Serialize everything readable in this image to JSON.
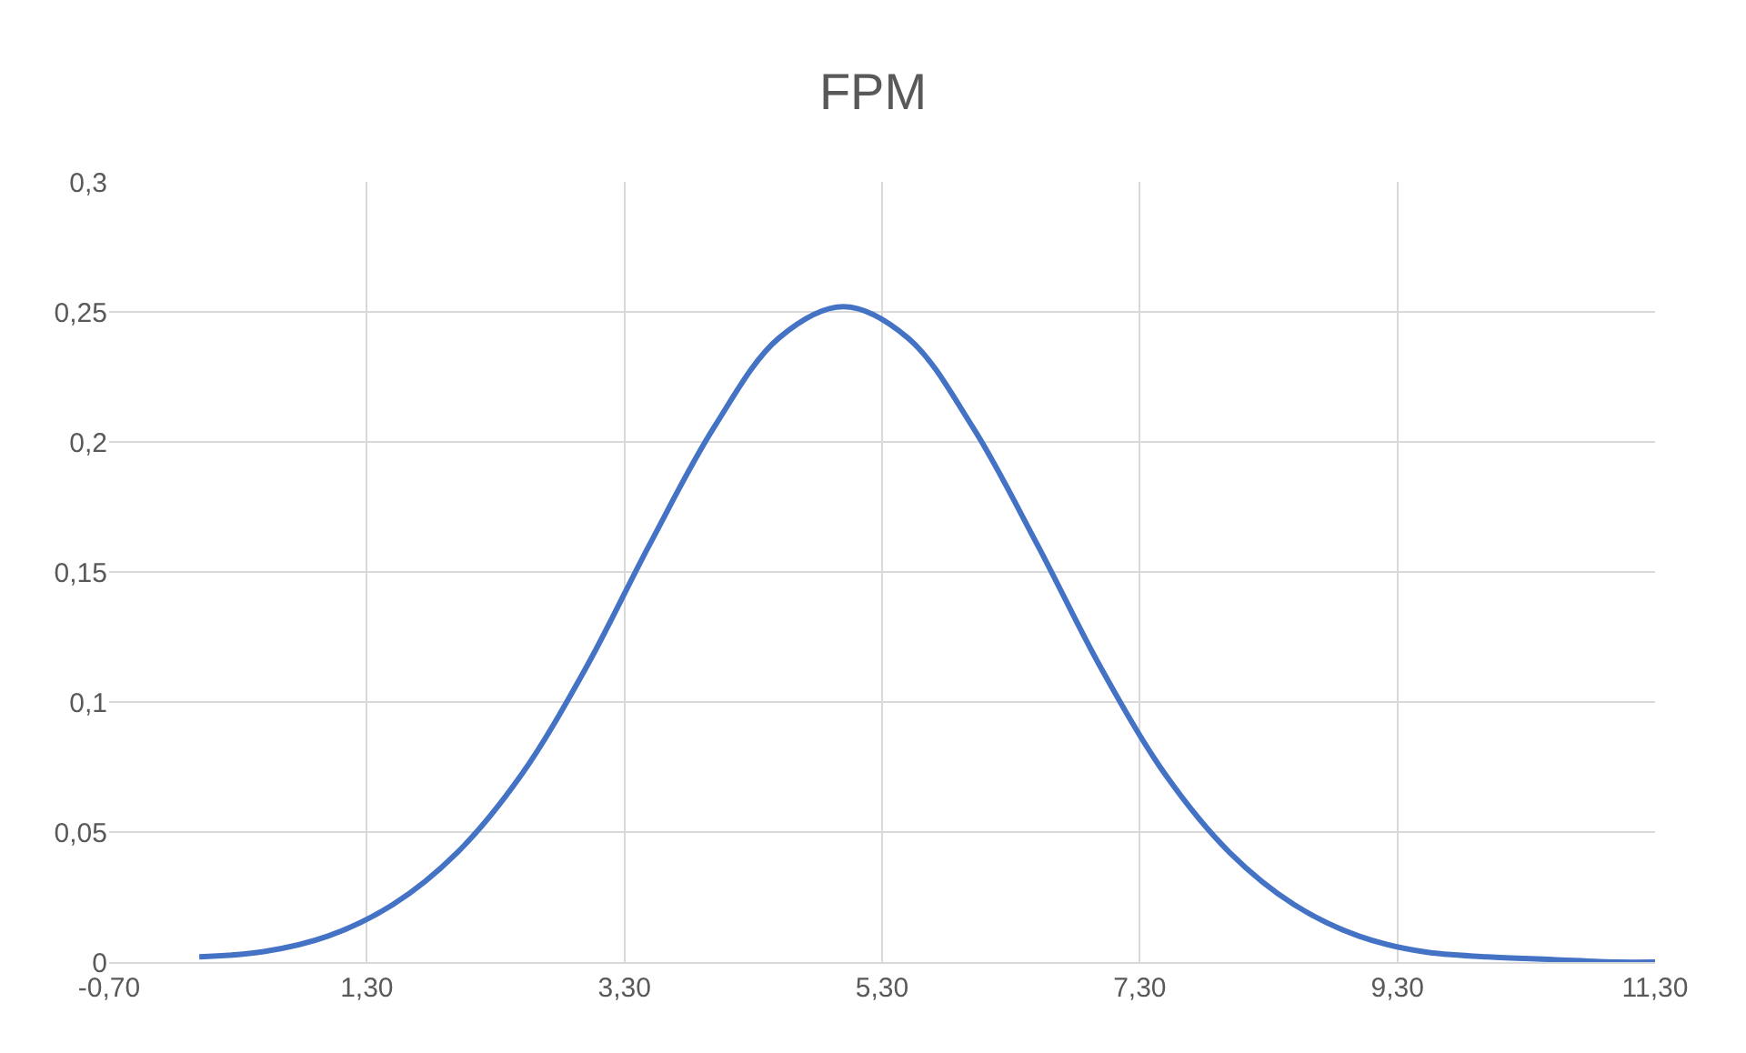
{
  "chart_data": {
    "type": "line",
    "title": "FPM",
    "x": [
      0,
      0.5,
      1,
      1.5,
      2,
      2.5,
      3,
      3.5,
      4,
      4.5,
      5,
      5.5,
      6,
      6.5,
      7,
      7.5,
      8,
      8.5,
      9,
      9.5,
      10,
      10.5,
      11,
      11.3
    ],
    "series": [
      {
        "color": "#4472c4",
        "values": [
          0.002,
          0.004,
          0.01,
          0.022,
          0.042,
          0.072,
          0.113,
          0.161,
          0.206,
          0.24,
          0.252,
          0.24,
          0.206,
          0.161,
          0.113,
          0.072,
          0.042,
          0.022,
          0.01,
          0.004,
          0.002,
          0.001,
          0.0,
          0.0
        ]
      }
    ],
    "xlim": [
      -0.7,
      11.3
    ],
    "xticks": [
      {
        "value": -0.7,
        "label": "-0,70"
      },
      {
        "value": 1.3,
        "label": "1,30"
      },
      {
        "value": 3.3,
        "label": "3,30"
      },
      {
        "value": 5.3,
        "label": "5,30"
      },
      {
        "value": 7.3,
        "label": "7,30"
      },
      {
        "value": 9.3,
        "label": "9,30"
      },
      {
        "value": 11.3,
        "label": "11,30"
      }
    ],
    "ylim": [
      0,
      0.3
    ],
    "yticks": [
      0,
      {
        "value": 0.05,
        "label": "0,05"
      },
      {
        "value": 0.1,
        "label": "0,1"
      },
      {
        "value": 0.15,
        "label": "0,15"
      },
      {
        "value": 0.2,
        "label": "0,2"
      },
      {
        "value": 0.25,
        "label": "0,25"
      },
      {
        "value": 0.3,
        "label": "0,3"
      }
    ],
    "grid": true,
    "legend": false,
    "marker": "none",
    "line_style": "solid"
  }
}
